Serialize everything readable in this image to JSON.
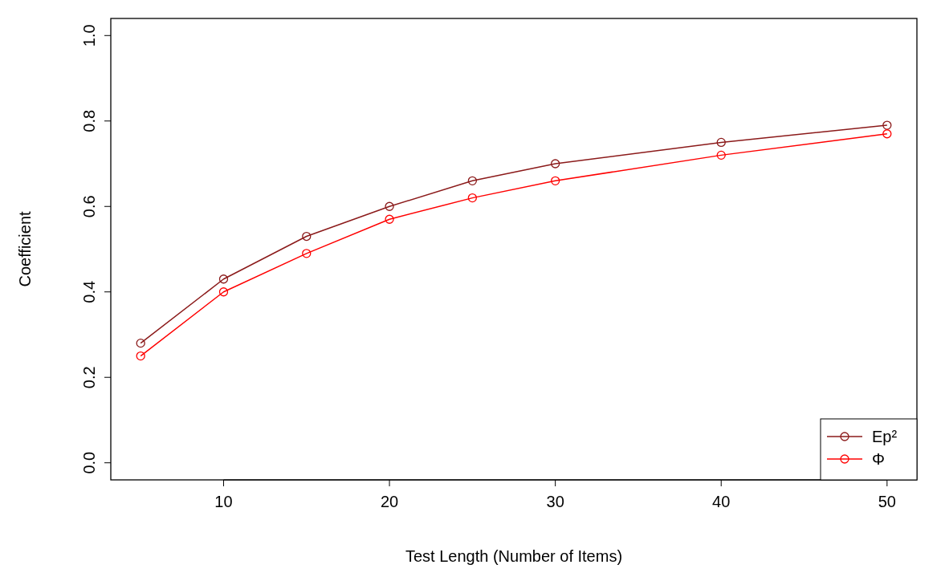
{
  "chart_data": {
    "type": "line",
    "xlabel": "Test Length (Number of Items)",
    "ylabel": "Coefficient",
    "x": [
      5,
      10,
      15,
      20,
      25,
      30,
      40,
      50
    ],
    "series": [
      {
        "name": "Ep²",
        "color": "#8b1a1a",
        "values": [
          0.28,
          0.43,
          0.53,
          0.6,
          0.66,
          0.7,
          0.75,
          0.79
        ]
      },
      {
        "name": "Φ",
        "color": "#ff0000",
        "values": [
          0.25,
          0.4,
          0.49,
          0.57,
          0.62,
          0.66,
          0.72,
          0.77
        ]
      }
    ],
    "xlim": [
      3.2,
      51.8
    ],
    "xticks": [
      10,
      20,
      30,
      40,
      50
    ],
    "ylim": [
      -0.04,
      1.04
    ],
    "yticks": [
      {
        "value": 0,
        "label": "0.0"
      },
      {
        "value": 0.2,
        "label": "0.2"
      },
      {
        "value": 0.4,
        "label": "0.4"
      },
      {
        "value": 0.6,
        "label": "0.6"
      },
      {
        "value": 0.8,
        "label": "0.8"
      },
      {
        "value": 1,
        "label": "1.0"
      }
    ],
    "marker": "circle",
    "line_style": "solid",
    "legend": "bottom right",
    "grid": false
  }
}
